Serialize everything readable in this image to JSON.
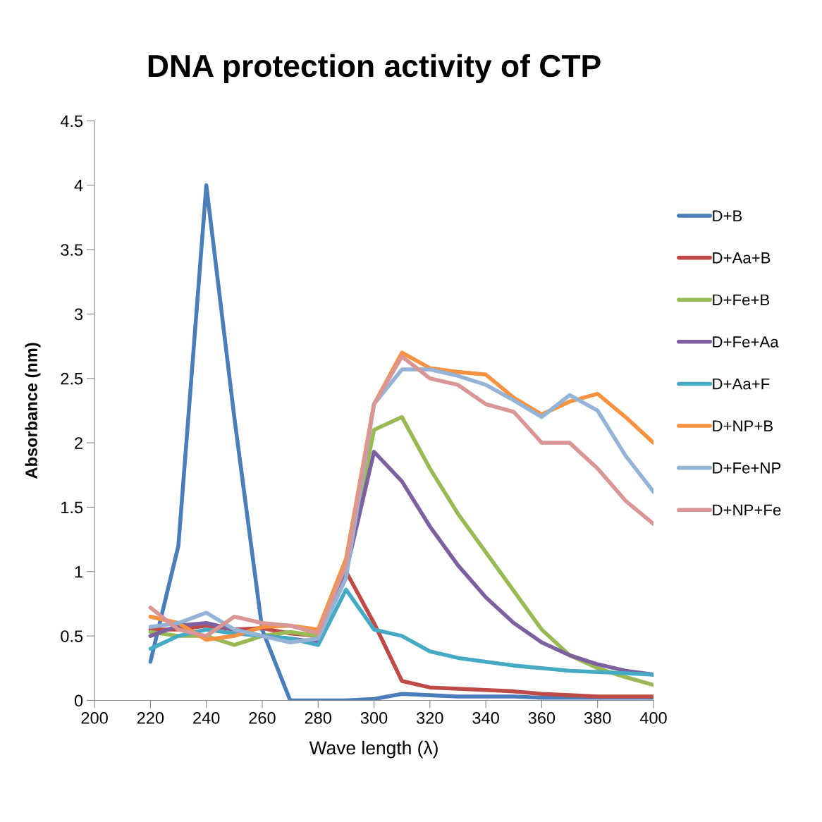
{
  "chart_data": {
    "type": "line",
    "title": "DNA protection activity of CTP",
    "xlabel": "Wave length (λ)",
    "ylabel": "Absorbance (nm)",
    "x": [
      220,
      230,
      240,
      250,
      260,
      270,
      280,
      290,
      300,
      310,
      320,
      330,
      340,
      350,
      360,
      370,
      380,
      390,
      400
    ],
    "xlim": [
      200,
      400
    ],
    "xticks": [
      200,
      220,
      240,
      260,
      280,
      300,
      320,
      340,
      360,
      380,
      400
    ],
    "ylim": [
      0,
      4.5
    ],
    "yticks": [
      0,
      0.5,
      1,
      1.5,
      2,
      2.5,
      3,
      3.5,
      4,
      4.5
    ],
    "grid": false,
    "legend": "right",
    "marker": "none",
    "line_style": "solid",
    "series": [
      {
        "name": "D+B",
        "color": "#4a7ebb",
        "values": [
          0.3,
          1.2,
          4.0,
          2.2,
          0.55,
          0.0,
          0.0,
          0.0,
          0.01,
          0.05,
          0.04,
          0.03,
          0.03,
          0.03,
          0.02,
          0.02,
          0.02,
          0.02,
          0.02
        ]
      },
      {
        "name": "D+Aa+B",
        "color": "#be4b48",
        "values": [
          0.55,
          0.55,
          0.58,
          0.55,
          0.56,
          0.52,
          0.5,
          1.0,
          0.6,
          0.15,
          0.1,
          0.09,
          0.08,
          0.07,
          0.05,
          0.04,
          0.03,
          0.03,
          0.03
        ]
      },
      {
        "name": "D+Fe+B",
        "color": "#98b954",
        "values": [
          0.53,
          0.5,
          0.5,
          0.43,
          0.5,
          0.53,
          0.5,
          1.0,
          2.1,
          2.2,
          1.8,
          1.45,
          1.15,
          0.85,
          0.55,
          0.35,
          0.25,
          0.18,
          0.12
        ]
      },
      {
        "name": "D+Fe+Aa",
        "color": "#7d60a0",
        "values": [
          0.5,
          0.58,
          0.6,
          0.55,
          0.5,
          0.48,
          0.45,
          1.0,
          1.93,
          1.7,
          1.35,
          1.05,
          0.8,
          0.6,
          0.45,
          0.35,
          0.28,
          0.23,
          0.2
        ]
      },
      {
        "name": "D+Aa+F",
        "color": "#46aac5",
        "values": [
          0.4,
          0.5,
          0.55,
          0.52,
          0.5,
          0.48,
          0.43,
          0.86,
          0.55,
          0.5,
          0.38,
          0.33,
          0.3,
          0.27,
          0.25,
          0.23,
          0.22,
          0.21,
          0.2
        ]
      },
      {
        "name": "D+NP+B",
        "color": "#f69240",
        "values": [
          0.65,
          0.6,
          0.47,
          0.5,
          0.57,
          0.58,
          0.55,
          1.1,
          2.3,
          2.7,
          2.58,
          2.55,
          2.53,
          2.35,
          2.22,
          2.32,
          2.38,
          2.2,
          2.0
        ]
      },
      {
        "name": "D+Fe+NP",
        "color": "#95b3d7",
        "values": [
          0.57,
          0.6,
          0.68,
          0.55,
          0.5,
          0.45,
          0.48,
          0.95,
          2.3,
          2.57,
          2.57,
          2.52,
          2.45,
          2.33,
          2.2,
          2.37,
          2.25,
          1.9,
          1.62
        ]
      },
      {
        "name": "D+NP+Fe",
        "color": "#d99694",
        "values": [
          0.72,
          0.55,
          0.5,
          0.65,
          0.6,
          0.58,
          0.52,
          1.05,
          2.3,
          2.67,
          2.5,
          2.45,
          2.3,
          2.24,
          2.0,
          2.0,
          1.8,
          1.55,
          1.37
        ]
      }
    ]
  }
}
